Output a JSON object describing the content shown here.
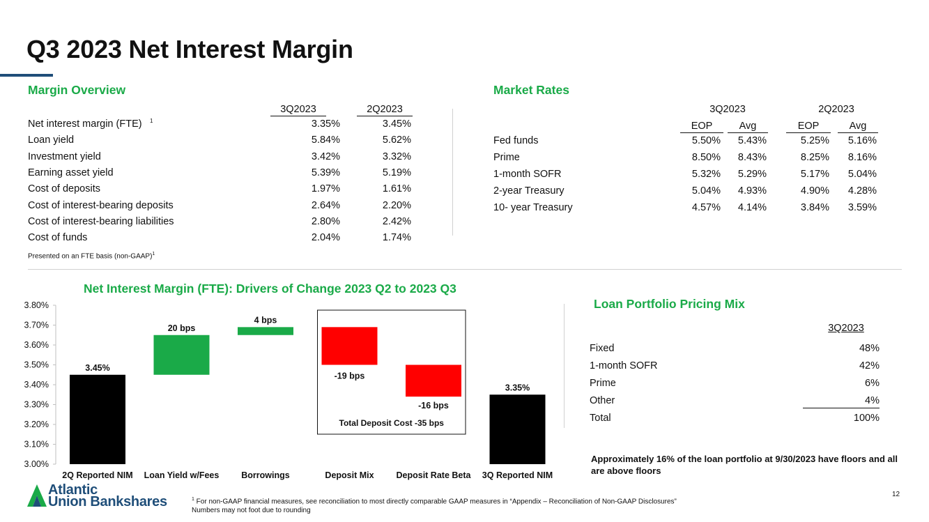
{
  "title": "Q3 2023 Net Interest Margin",
  "margin_overview": {
    "title": "Margin Overview",
    "col1": "3Q2023",
    "col2": "2Q2023",
    "rows": [
      {
        "label": "Net interest margin  (FTE)",
        "sup": "1",
        "v1": "3.35%",
        "v2": "3.45%"
      },
      {
        "label": "Loan yield",
        "sup": "",
        "v1": "5.84%",
        "v2": "5.62%"
      },
      {
        "label": "Investment yield",
        "sup": "",
        "v1": "3.42%",
        "v2": "3.32%"
      },
      {
        "label": "Earning asset yield",
        "sup": "",
        "v1": "5.39%",
        "v2": "5.19%"
      },
      {
        "label": "Cost of deposits",
        "sup": "",
        "v1": "1.97%",
        "v2": "1.61%"
      },
      {
        "label": "Cost of interest-bearing deposits",
        "sup": "",
        "v1": "2.64%",
        "v2": "2.20%"
      },
      {
        "label": "Cost of interest-bearing liabilities",
        "sup": "",
        "v1": "2.80%",
        "v2": "2.42%"
      },
      {
        "label": "Cost of funds",
        "sup": "",
        "v1": "2.04%",
        "v2": "1.74%"
      }
    ],
    "note": "Presented on an FTE basis (non-GAAP)",
    "note_sup": "1"
  },
  "market_rates": {
    "title": "Market Rates",
    "group1": "3Q2023",
    "group2": "2Q2023",
    "sub_eop": "EOP",
    "sub_avg": "Avg",
    "rows": [
      {
        "label": "Fed funds",
        "q3_eop": "5.50%",
        "q3_avg": "5.43%",
        "q2_eop": "5.25%",
        "q2_avg": "5.16%"
      },
      {
        "label": "Prime",
        "q3_eop": "8.50%",
        "q3_avg": "8.43%",
        "q2_eop": "8.25%",
        "q2_avg": "8.16%"
      },
      {
        "label": "1-month SOFR",
        "q3_eop": "5.32%",
        "q3_avg": "5.29%",
        "q2_eop": "5.17%",
        "q2_avg": "5.04%"
      },
      {
        "label": "2-year Treasury",
        "q3_eop": "5.04%",
        "q3_avg": "4.93%",
        "q2_eop": "4.90%",
        "q2_avg": "4.28%"
      },
      {
        "label": "10- year Treasury",
        "q3_eop": "4.57%",
        "q3_avg": "4.14%",
        "q2_eop": "3.84%",
        "q2_avg": "3.59%"
      }
    ]
  },
  "chart_data": {
    "type": "bar",
    "subtype": "waterfall",
    "title": "Net Interest Margin (FTE): Drivers of Change 2023 Q2 to 2023 Q3",
    "ylim": [
      3.0,
      3.8
    ],
    "yticks": [
      "3.00%",
      "3.10%",
      "3.20%",
      "3.30%",
      "3.40%",
      "3.50%",
      "3.60%",
      "3.70%",
      "3.80%"
    ],
    "categories": [
      "2Q Reported NIM",
      "Loan Yield w/Fees",
      "Borrowings",
      "Deposit Mix",
      "Deposit Rate Beta",
      "3Q Reported NIM"
    ],
    "bars": [
      {
        "category": "2Q Reported NIM",
        "kind": "total",
        "start": 3.0,
        "end": 3.45,
        "label": "3.45%",
        "color": "#000000"
      },
      {
        "category": "Loan Yield w/Fees",
        "kind": "increase",
        "start": 3.45,
        "end": 3.65,
        "label": "20 bps",
        "color": "#1aaa48"
      },
      {
        "category": "Borrowings",
        "kind": "increase",
        "start": 3.65,
        "end": 3.69,
        "label": "4 bps",
        "color": "#1aaa48"
      },
      {
        "category": "Deposit Mix",
        "kind": "decrease",
        "start": 3.69,
        "end": 3.5,
        "label": "-19 bps",
        "color": "#ff0000"
      },
      {
        "category": "Deposit Rate Beta",
        "kind": "decrease",
        "start": 3.5,
        "end": 3.34,
        "label": "-16 bps",
        "color": "#ff0000"
      },
      {
        "category": "3Q Reported NIM",
        "kind": "total",
        "start": 3.0,
        "end": 3.35,
        "label": "3.35%",
        "color": "#000000"
      }
    ],
    "annotation": "Total Deposit Cost -35 bps"
  },
  "loan_mix": {
    "title": "Loan Portfolio Pricing Mix",
    "col": "3Q2023",
    "rows": [
      {
        "label": "Fixed",
        "value": "48%"
      },
      {
        "label": "1-month SOFR",
        "value": "42%"
      },
      {
        "label": "Prime",
        "value": "6%"
      },
      {
        "label": "Other",
        "value": "4%"
      },
      {
        "label": "Total",
        "value": "100%"
      }
    ],
    "callout": "Approximately 16% of the loan portfolio at 9/30/2023 have floors and all are above floors"
  },
  "footer": {
    "logo_line1": "Atlantic",
    "logo_line2": "Union Bankshares",
    "footnote_sup": "1",
    "footnote": " For non-GAAP financial measures, see reconciliation to most directly comparable GAAP measures in “Appendix – Reconciliation of Non-GAAP Disclosures”",
    "footnote2": "Numbers may not foot due to rounding",
    "page_number": "12"
  },
  "colors": {
    "accent_green": "#1aaa48",
    "brand_blue": "#1f4e79",
    "increase": "#1aaa48",
    "decrease": "#ff0000",
    "total": "#000000"
  }
}
